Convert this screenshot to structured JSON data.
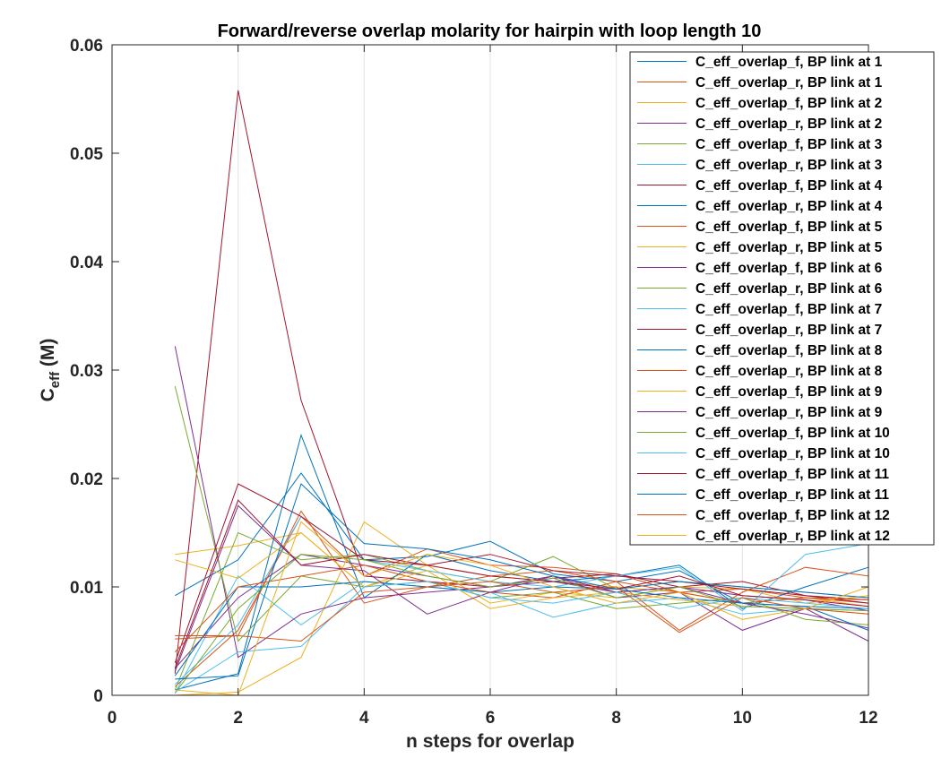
{
  "chart_data": {
    "type": "line",
    "title": "Forward/reverse overlap molarity for hairpin with loop length 10",
    "xlabel": "n steps for overlap",
    "ylabel_main": "C",
    "ylabel_sub": "eff",
    "ylabel_unit": " (M)",
    "xlim": [
      0,
      12
    ],
    "ylim": [
      0,
      0.06
    ],
    "xticks": [
      0,
      2,
      4,
      6,
      8,
      10,
      12
    ],
    "xtick_labels": [
      "0",
      "2",
      "4",
      "6",
      "8",
      "10",
      "12"
    ],
    "yticks": [
      0,
      0.01,
      0.02,
      0.03,
      0.04,
      0.05,
      0.06
    ],
    "ytick_labels": [
      "0",
      "0.01",
      "0.02",
      "0.03",
      "0.04",
      "0.05",
      "0.06"
    ],
    "grid": "vertical",
    "legend_position": "top-right",
    "x": [
      1,
      2,
      3,
      4,
      5,
      6,
      7,
      8,
      9,
      10,
      11,
      12
    ],
    "series": [
      {
        "name": "C_eff_overlap_f, BP link at 1",
        "color": "#0072BD",
        "values": [
          0.0092,
          0.0125,
          0.0205,
          0.0125,
          0.0128,
          0.0142,
          0.0112,
          0.0105,
          0.0115,
          0.0085,
          0.0082,
          0.008
        ]
      },
      {
        "name": "C_eff_overlap_r, BP link at 1",
        "color": "#D95319",
        "values": [
          0.0008,
          0.006,
          0.0165,
          0.011,
          0.0135,
          0.012,
          0.0118,
          0.0112,
          0.0095,
          0.0098,
          0.009,
          0.0085
        ]
      },
      {
        "name": "C_eff_overlap_f, BP link at 2",
        "color": "#EDB120",
        "values": [
          0.013,
          0.0138,
          0.015,
          0.01,
          0.012,
          0.011,
          0.0105,
          0.01,
          0.0095,
          0.0085,
          0.009,
          0.0082
        ]
      },
      {
        "name": "C_eff_overlap_r, BP link at 2",
        "color": "#7E2F8E",
        "values": [
          0.0025,
          0.009,
          0.013,
          0.012,
          0.011,
          0.01,
          0.0105,
          0.0095,
          0.01,
          0.0092,
          0.0088,
          0.0078
        ]
      },
      {
        "name": "C_eff_overlap_f, BP link at 3",
        "color": "#77AC30",
        "values": [
          0.0005,
          0.015,
          0.0125,
          0.013,
          0.0115,
          0.0105,
          0.0128,
          0.0098,
          0.0105,
          0.01,
          0.0095,
          0.009
        ]
      },
      {
        "name": "C_eff_overlap_r, BP link at 3",
        "color": "#4DBEEE",
        "values": [
          0.0002,
          0.011,
          0.0065,
          0.0105,
          0.01,
          0.0095,
          0.0072,
          0.0085,
          0.009,
          0.0075,
          0.008,
          0.0078
        ]
      },
      {
        "name": "C_eff_overlap_f, BP link at 4",
        "color": "#A2142F",
        "values": [
          0.002,
          0.0558,
          0.0272,
          0.011,
          0.0105,
          0.01,
          0.0108,
          0.0112,
          0.01,
          0.0105,
          0.0092,
          0.0088
        ]
      },
      {
        "name": "C_eff_overlap_r, BP link at 4",
        "color": "#0072BD",
        "values": [
          0.0005,
          0.002,
          0.024,
          0.009,
          0.013,
          0.0115,
          0.0105,
          0.011,
          0.012,
          0.008,
          0.01,
          0.0118
        ]
      },
      {
        "name": "C_eff_overlap_f, BP link at 5",
        "color": "#D95319",
        "values": [
          0.0055,
          0.0055,
          0.017,
          0.0085,
          0.01,
          0.011,
          0.0115,
          0.0105,
          0.006,
          0.0095,
          0.0118,
          0.011
        ]
      },
      {
        "name": "C_eff_overlap_r, BP link at 5",
        "color": "#EDB120",
        "values": [
          0.0,
          0.0003,
          0.0035,
          0.016,
          0.012,
          0.0085,
          0.0095,
          0.009,
          0.01,
          0.0098,
          0.0085,
          0.0092
        ]
      },
      {
        "name": "C_eff_overlap_f, BP link at 6",
        "color": "#7E2F8E",
        "values": [
          0.0322,
          0.0035,
          0.0075,
          0.009,
          0.0095,
          0.01,
          0.011,
          0.009,
          0.0095,
          0.006,
          0.008,
          0.005
        ]
      },
      {
        "name": "C_eff_overlap_r, BP link at 6",
        "color": "#77AC30",
        "values": [
          0.0285,
          0.005,
          0.011,
          0.01,
          0.0105,
          0.009,
          0.0095,
          0.008,
          0.0085,
          0.009,
          0.007,
          0.0065
        ]
      },
      {
        "name": "C_eff_overlap_f, BP link at 7",
        "color": "#4DBEEE",
        "values": [
          0.001,
          0.0065,
          0.0165,
          0.0125,
          0.0115,
          0.0105,
          0.01,
          0.011,
          0.0118,
          0.0078,
          0.013,
          0.014
        ]
      },
      {
        "name": "C_eff_overlap_r, BP link at 7",
        "color": "#A2142F",
        "values": [
          0.003,
          0.0195,
          0.0165,
          0.0125,
          0.012,
          0.013,
          0.0115,
          0.011,
          0.0105,
          0.0098,
          0.0092,
          0.0085
        ]
      },
      {
        "name": "C_eff_overlap_f, BP link at 8",
        "color": "#0072BD",
        "values": [
          0.0018,
          0.01,
          0.01,
          0.0105,
          0.01,
          0.0095,
          0.01,
          0.0098,
          0.0105,
          0.01,
          0.0095,
          0.009
        ]
      },
      {
        "name": "C_eff_overlap_r, BP link at 8",
        "color": "#D95319",
        "values": [
          0.004,
          0.01,
          0.011,
          0.012,
          0.0105,
          0.0095,
          0.009,
          0.0105,
          0.0095,
          0.0085,
          0.009,
          0.0088
        ]
      },
      {
        "name": "C_eff_overlap_f, BP link at 9",
        "color": "#EDB120",
        "values": [
          0.0125,
          0.0108,
          0.015,
          0.01,
          0.0115,
          0.008,
          0.009,
          0.0095,
          0.0088,
          0.0082,
          0.008,
          0.0075
        ]
      },
      {
        "name": "C_eff_overlap_r, BP link at 9",
        "color": "#7E2F8E",
        "values": [
          0.0022,
          0.0175,
          0.012,
          0.0115,
          0.0075,
          0.0095,
          0.011,
          0.0095,
          0.01,
          0.0085,
          0.0075,
          0.0062
        ]
      },
      {
        "name": "C_eff_overlap_f, BP link at 10",
        "color": "#77AC30",
        "values": [
          0.0002,
          0.008,
          0.013,
          0.0125,
          0.011,
          0.01,
          0.0108,
          0.009,
          0.01,
          0.0082,
          0.008,
          0.0078
        ]
      },
      {
        "name": "C_eff_overlap_r, BP link at 10",
        "color": "#4DBEEE",
        "values": [
          0.0003,
          0.004,
          0.0045,
          0.01,
          0.0105,
          0.009,
          0.0085,
          0.0095,
          0.008,
          0.009,
          0.0085,
          0.008
        ]
      },
      {
        "name": "C_eff_overlap_f, BP link at 11",
        "color": "#A2142F",
        "values": [
          0.0025,
          0.018,
          0.012,
          0.013,
          0.012,
          0.011,
          0.0105,
          0.0098,
          0.011,
          0.0092,
          0.0088,
          0.0082
        ]
      },
      {
        "name": "C_eff_overlap_r, BP link at 11",
        "color": "#0072BD",
        "values": [
          0.0015,
          0.0018,
          0.0195,
          0.014,
          0.0135,
          0.0125,
          0.011,
          0.0098,
          0.009,
          0.0085,
          0.0082,
          0.006
        ]
      },
      {
        "name": "C_eff_overlap_f, BP link at 12",
        "color": "#D95319",
        "values": [
          0.0052,
          0.0055,
          0.005,
          0.0095,
          0.01,
          0.0105,
          0.0095,
          0.01,
          0.0058,
          0.009,
          0.008,
          0.0075
        ]
      },
      {
        "name": "C_eff_overlap_r, BP link at 12",
        "color": "#EDB120",
        "values": [
          0.0005,
          0.0,
          0.016,
          0.011,
          0.013,
          0.012,
          0.01,
          0.0085,
          0.0095,
          0.007,
          0.008,
          0.01
        ]
      }
    ]
  }
}
